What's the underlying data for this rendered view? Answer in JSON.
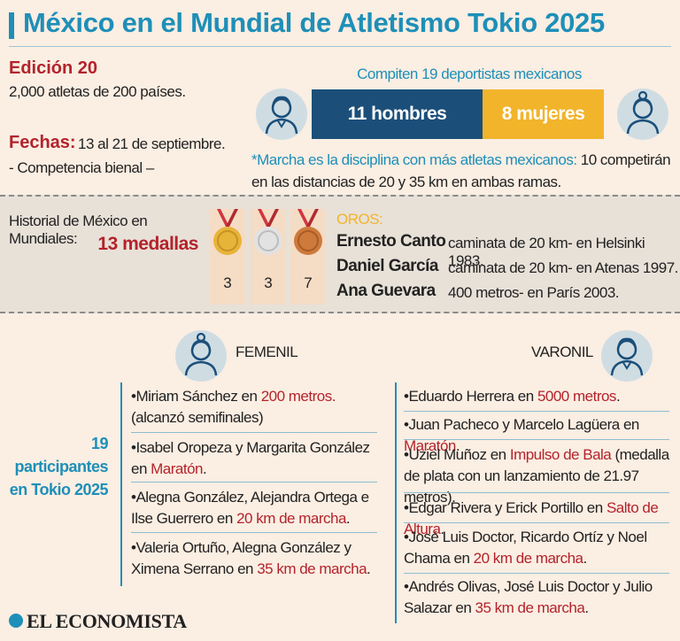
{
  "header": {
    "title": "México en el Mundial de Atletismo Tokio 2025"
  },
  "edicion": {
    "title": "Edición 20",
    "text": "2,000 atletas de 200 países."
  },
  "fechas": {
    "label": "Fechas:",
    "value": "13 al 21 de septiembre.",
    "note": "- Competencia bienal –"
  },
  "competidores": {
    "title": "Compiten 19 deportistas mexicanos",
    "hombres_label": "11 hombres",
    "mujeres_label": "8 mujeres",
    "hombres": 11,
    "mujeres": 8,
    "note_highlight": "*Marcha es la disciplina con más atletas mexicanos:",
    "note_rest": " 10 competirán en las distancias de 20 y 35 km en ambas ramas."
  },
  "historial": {
    "label": "Historial de México en Mundiales:",
    "medals_label": "13 medallas",
    "medals": [
      {
        "type": "oro",
        "count": "3"
      },
      {
        "type": "plata",
        "count": "3"
      },
      {
        "type": "bronce",
        "count": "7"
      }
    ],
    "oros_label": "OROS:",
    "oros": [
      {
        "name": "Ernesto Canto",
        "desc": "caminata de 20 km- en Helsinki 1983."
      },
      {
        "name": "Daniel García",
        "desc": "caminata de 20 km- en Atenas 1997."
      },
      {
        "name": "Ana Guevara",
        "desc": "400 metros- en París 2003."
      }
    ]
  },
  "participantes": {
    "line1": "19",
    "line2": "participantes",
    "line3": "en Tokio 2025"
  },
  "femenil": {
    "label": "FEMENIL",
    "entries": [
      {
        "pre": "•Miriam Sánchez en ",
        "event": "200 metros.",
        "post": " (alcanzó semifinales)"
      },
      {
        "pre": "•Isabel Oropeza y Margarita González en ",
        "event": "Maratón",
        "post": "."
      },
      {
        "pre": "•Alegna González, Alejandra Ortega e Ilse Guerrero en ",
        "event": "20 km de marcha",
        "post": "."
      },
      {
        "pre": "•Valeria Ortuño, Alegna González y Ximena Serrano en ",
        "event": "35 km de marcha",
        "post": "."
      }
    ]
  },
  "varonil": {
    "label": "VARONIL",
    "entries": [
      {
        "pre": "•Eduardo Herrera en ",
        "event": "5000 metros",
        "post": "."
      },
      {
        "pre": "•Juan Pacheco y Marcelo Lagüera en ",
        "event": "Maratón",
        "post": "."
      },
      {
        "pre": "•Uziel Muñoz en ",
        "event": "Impulso de Bala",
        "post": " (medalla de plata con un lanzamiento de 21.97 metros)."
      },
      {
        "pre": "•Edgar Rivera y Erick Portillo en ",
        "event": "Salto de Altura",
        "post": "."
      },
      {
        "pre": "•José Luis Doctor, Ricardo Ortíz y Noel Chama en ",
        "event": "20 km de marcha",
        "post": "."
      },
      {
        "pre": "•Andrés Olivas, José Luis Doctor y Julio Salazar en ",
        "event": "35 km de marcha",
        "post": "."
      }
    ]
  },
  "footer": {
    "logo": "EL ECONOMISTA"
  },
  "icons": {
    "man": "man-icon",
    "woman": "woman-icon",
    "medal": "medal-icon",
    "logo": "logo-dot-icon"
  },
  "colors": {
    "blue": "#1e8fb8",
    "navy": "#1b4f7a",
    "yellow": "#f2b42b",
    "red": "#b3232b",
    "gold": "#e7b43a",
    "silver": "#d9d9d9",
    "bronze": "#cd7a3c",
    "ribbon": "#d2363e"
  }
}
